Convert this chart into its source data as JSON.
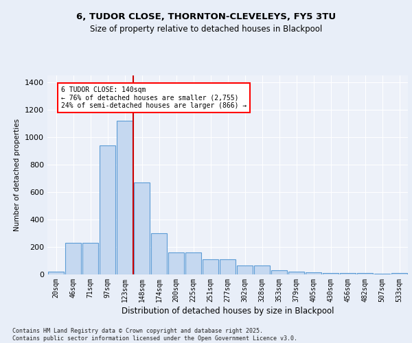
{
  "title1": "6, TUDOR CLOSE, THORNTON-CLEVELEYS, FY5 3TU",
  "title2": "Size of property relative to detached houses in Blackpool",
  "xlabel": "Distribution of detached houses by size in Blackpool",
  "ylabel": "Number of detached properties",
  "categories": [
    "20sqm",
    "46sqm",
    "71sqm",
    "97sqm",
    "123sqm",
    "148sqm",
    "174sqm",
    "200sqm",
    "225sqm",
    "251sqm",
    "277sqm",
    "302sqm",
    "328sqm",
    "353sqm",
    "379sqm",
    "405sqm",
    "430sqm",
    "456sqm",
    "482sqm",
    "507sqm",
    "533sqm"
  ],
  "values": [
    20,
    230,
    230,
    940,
    1120,
    670,
    300,
    160,
    160,
    110,
    110,
    65,
    65,
    30,
    20,
    15,
    10,
    10,
    10,
    5,
    10
  ],
  "bar_color": "#c5d8f0",
  "bar_edgecolor": "#5b9bd5",
  "annotation_text": "6 TUDOR CLOSE: 140sqm\n← 76% of detached houses are smaller (2,755)\n24% of semi-detached houses are larger (866) →",
  "ylim": [
    0,
    1450
  ],
  "yticks": [
    0,
    200,
    400,
    600,
    800,
    1000,
    1200,
    1400
  ],
  "footer": "Contains HM Land Registry data © Crown copyright and database right 2025.\nContains public sector information licensed under the Open Government Licence v3.0.",
  "background_color": "#e8eef8",
  "plot_background": "#edf1f9"
}
